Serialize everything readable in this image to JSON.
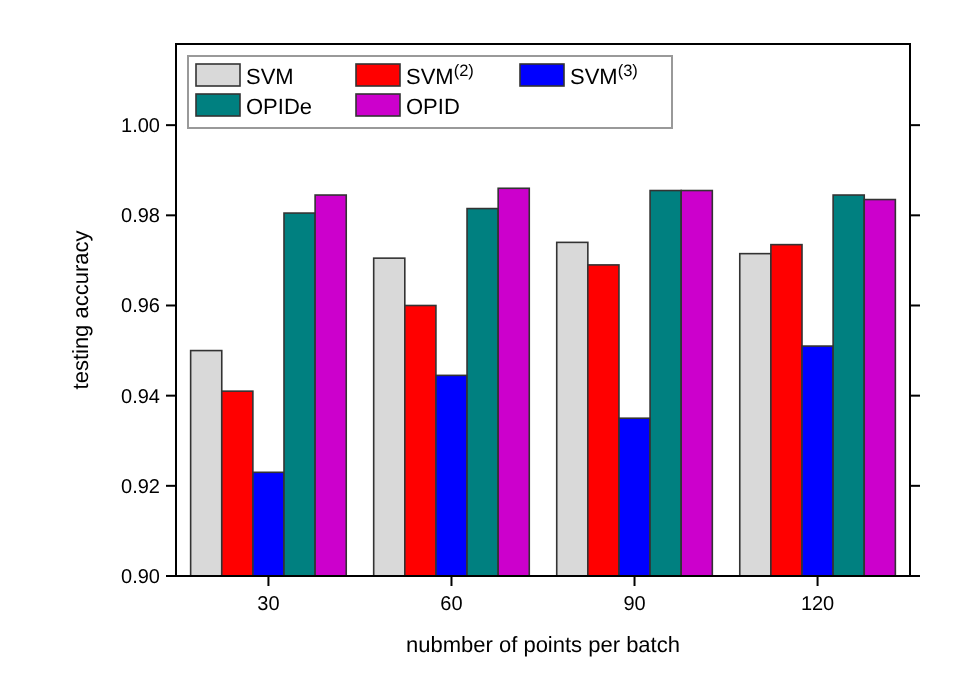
{
  "chart_data": {
    "type": "bar",
    "xlabel": "nubmber of points per batch",
    "ylabel": "testing accuracy",
    "categories": [
      "30",
      "60",
      "90",
      "120"
    ],
    "series": [
      {
        "name": "SVM",
        "color": "#d9d9d9",
        "values": [
          0.95,
          0.9705,
          0.974,
          0.9715
        ]
      },
      {
        "name": "SVM$^{(2)}$",
        "color": "#ff0000",
        "values": [
          0.941,
          0.96,
          0.969,
          0.9735
        ]
      },
      {
        "name": "SVM$^{(3)}$",
        "color": "#0000ff",
        "values": [
          0.923,
          0.9445,
          0.935,
          0.951
        ]
      },
      {
        "name": "OPIDe",
        "color": "#008080",
        "values": [
          0.9805,
          0.9815,
          0.9855,
          0.9845
        ]
      },
      {
        "name": "OPID",
        "color": "#cc00cc",
        "values": [
          0.9845,
          0.986,
          0.9855,
          0.9835
        ]
      }
    ],
    "ylim": [
      0.9,
      1.018
    ],
    "yticks": [
      {
        "value": 0.9,
        "label": "0.90"
      },
      0.92,
      0.94,
      0.96,
      0.98,
      {
        "value": 1.0,
        "label": "1.00"
      }
    ],
    "legend": "top left",
    "grid": false
  }
}
